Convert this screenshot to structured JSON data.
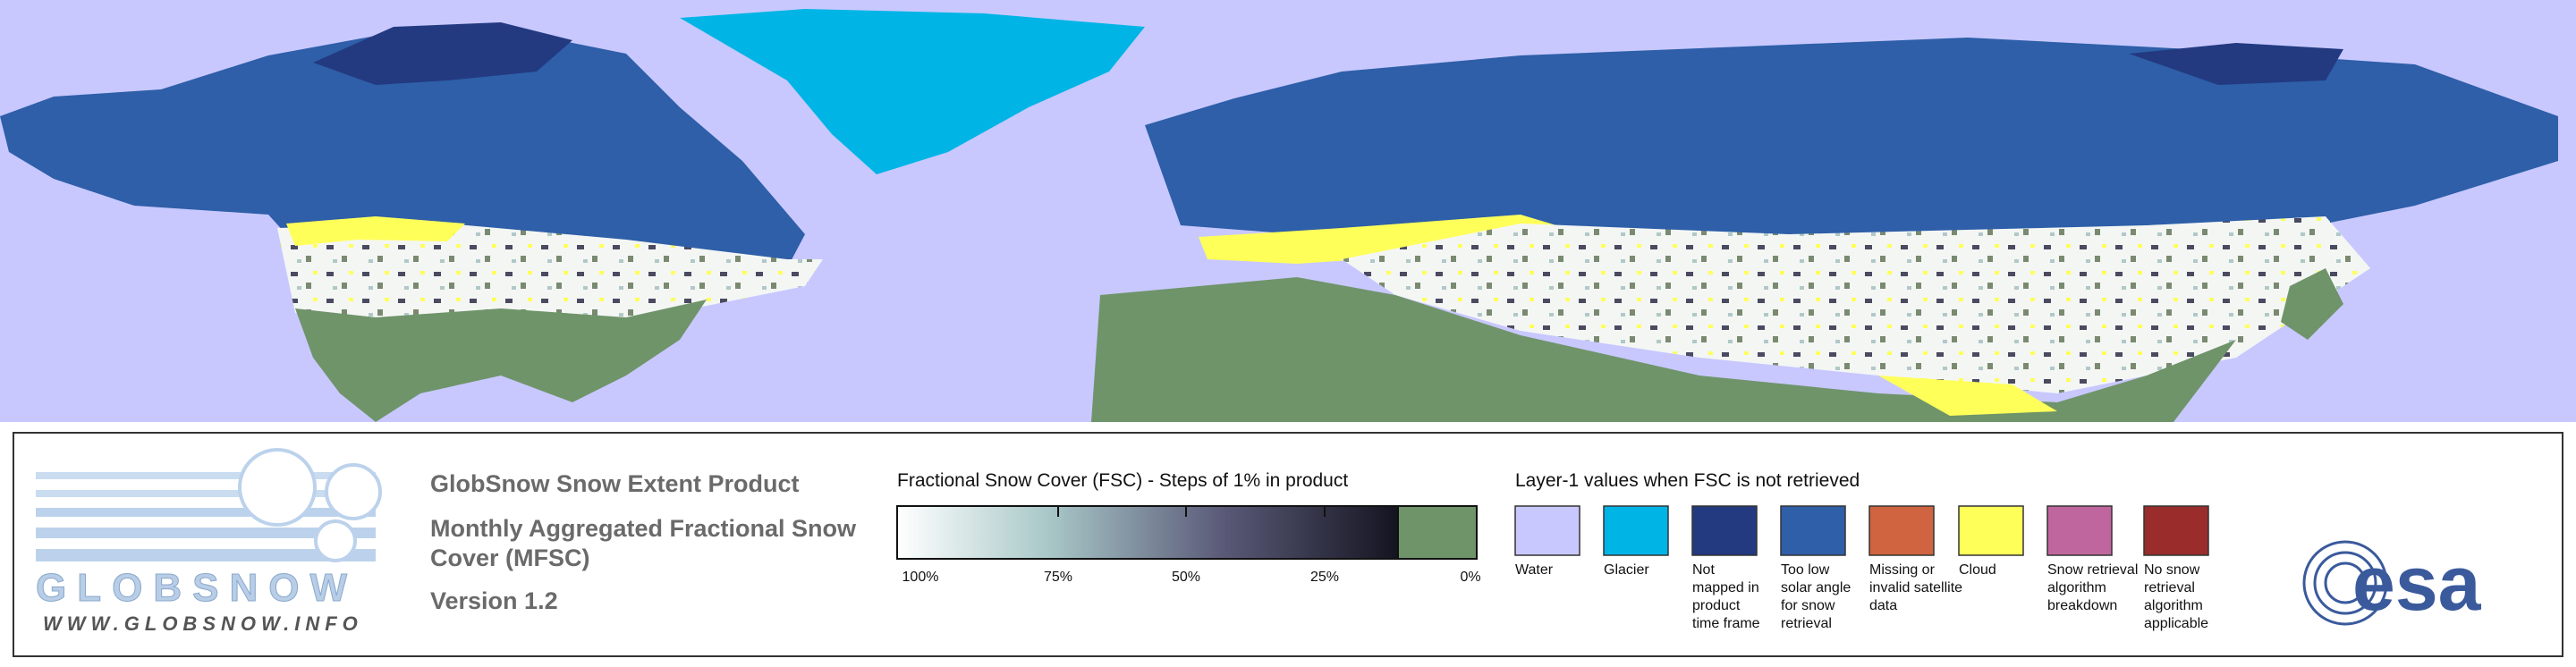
{
  "logo": {
    "name": "GLOBSNOW",
    "url": "WWW.GLOBSNOW.INFO"
  },
  "product": {
    "title": "GlobSnow Snow Extent Product",
    "subtitle_lines": [
      "Monthly Aggregated Fractional Snow",
      "Cover (MFSC)"
    ],
    "version": "Version 1.2"
  },
  "fsc_legend": {
    "title": "Fractional Snow Cover (FSC) - Steps of 1% in product",
    "ticks": [
      "100%",
      "75%",
      "50%",
      "25%",
      "0%"
    ]
  },
  "layer1_legend": {
    "title": "Layer-1 values when FSC is not retrieved",
    "items": [
      {
        "color": "#c8c8ff",
        "lines": [
          "Water"
        ]
      },
      {
        "color": "#00b4e6",
        "lines": [
          "Glacier"
        ]
      },
      {
        "color": "#233a80",
        "lines": [
          "Not",
          "mapped in",
          "product",
          "time frame"
        ]
      },
      {
        "color": "#2e5fa8",
        "lines": [
          "Too low",
          "solar angle",
          "for snow",
          "retrieval"
        ]
      },
      {
        "color": "#d06440",
        "lines": [
          "Missing or",
          "invalid satellite",
          "data"
        ]
      },
      {
        "color": "#ffff5a",
        "lines": [
          "Cloud"
        ]
      },
      {
        "color": "#c0669e",
        "lines": [
          "Snow retrieval",
          "algorithm",
          "breakdown"
        ]
      },
      {
        "color": "#9a2c2c",
        "lines": [
          "No snow",
          "retrieval",
          "algorithm",
          "applicable"
        ]
      }
    ]
  },
  "agency": {
    "name": "esa"
  }
}
